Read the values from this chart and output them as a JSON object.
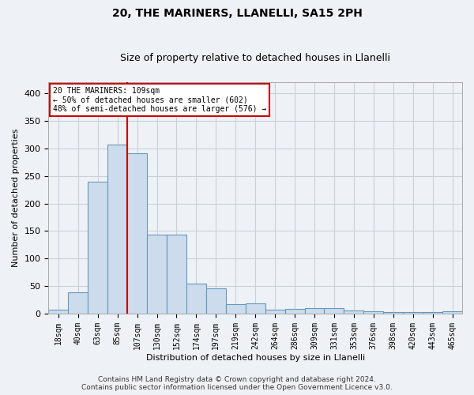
{
  "title1": "20, THE MARINERS, LLANELLI, SA15 2PH",
  "title2": "Size of property relative to detached houses in Llanelli",
  "xlabel": "Distribution of detached houses by size in Llanelli",
  "ylabel": "Number of detached properties",
  "categories": [
    "18sqm",
    "40sqm",
    "63sqm",
    "85sqm",
    "107sqm",
    "130sqm",
    "152sqm",
    "174sqm",
    "197sqm",
    "219sqm",
    "242sqm",
    "264sqm",
    "286sqm",
    "309sqm",
    "331sqm",
    "353sqm",
    "376sqm",
    "398sqm",
    "420sqm",
    "443sqm",
    "465sqm"
  ],
  "values": [
    7,
    38,
    240,
    307,
    291,
    143,
    143,
    54,
    46,
    17,
    19,
    7,
    8,
    10,
    10,
    5,
    4,
    3,
    3,
    3,
    4
  ],
  "bar_color": "#ccdcec",
  "bar_edge_color": "#6699bb",
  "vline_x_index": 3,
  "vline_color": "#cc0000",
  "annotation_text": "20 THE MARINERS: 109sqm\n← 50% of detached houses are smaller (602)\n48% of semi-detached houses are larger (576) →",
  "annotation_box_color": "#ffffff",
  "annotation_box_edge": "#cc0000",
  "grid_color": "#c8d0d8",
  "background_color": "#eef2f6",
  "plot_bg_color": "#eef2f6",
  "ylim": [
    0,
    420
  ],
  "yticks": [
    0,
    50,
    100,
    150,
    200,
    250,
    300,
    350,
    400
  ],
  "footer": "Contains HM Land Registry data © Crown copyright and database right 2024.\nContains public sector information licensed under the Open Government Licence v3.0.",
  "title_fontsize": 10,
  "subtitle_fontsize": 9,
  "tick_fontsize": 7,
  "label_fontsize": 8,
  "footer_fontsize": 6.5
}
